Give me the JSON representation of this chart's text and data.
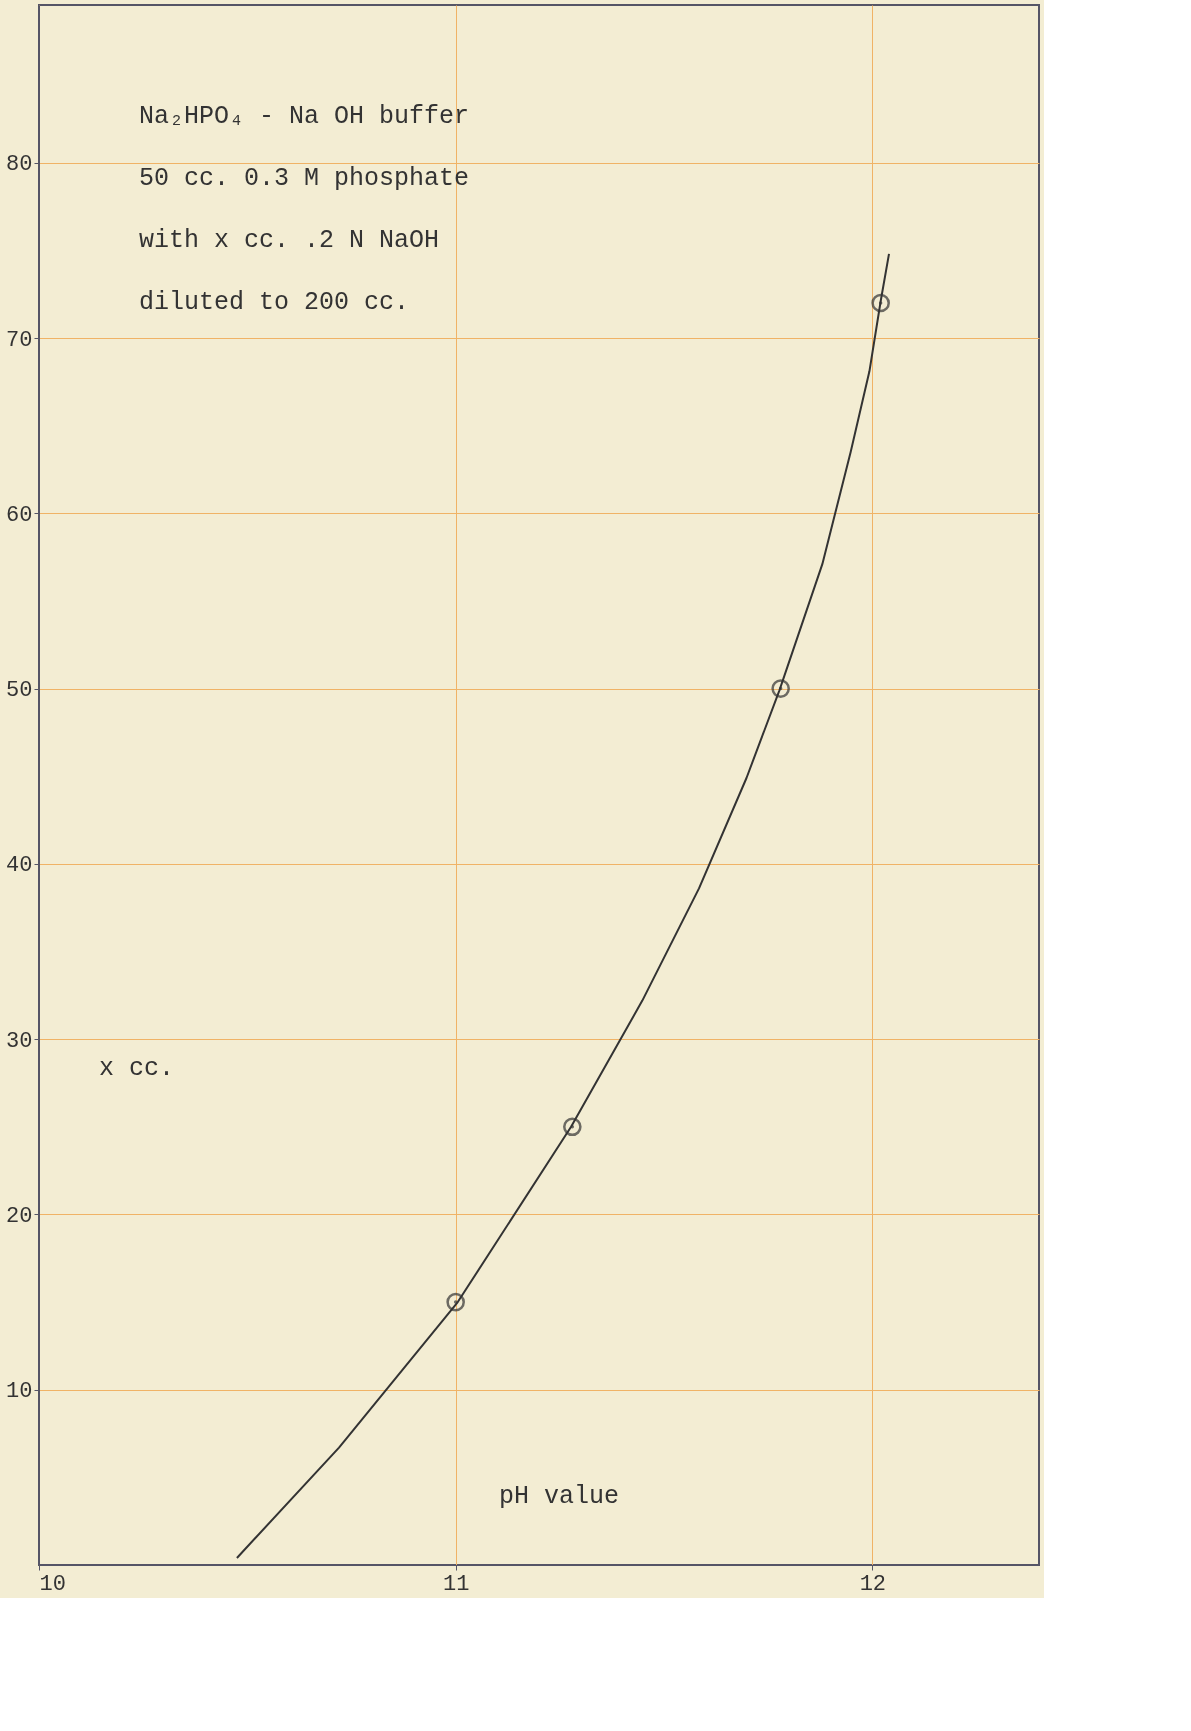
{
  "chart_data": {
    "type": "line",
    "xlabel": "pH value",
    "ylabel": "x  cc.",
    "annotations": [
      "Na₂HPO₄ - Na OH  buffer",
      "50 cc. 0.3 M phosphate",
      "with  x  cc. .2 N NaOH",
      "diluted to 200 cc."
    ],
    "xlim": [
      10,
      12.4
    ],
    "xticks": [
      10,
      11,
      12
    ],
    "ylim": [
      0,
      89
    ],
    "yticks": [
      10,
      20,
      30,
      40,
      50,
      60,
      70,
      80
    ],
    "grid": true,
    "line_style": "solid",
    "series": [
      {
        "marker": "none",
        "color": "#333333",
        "x": [
          10.475,
          10.72,
          11.005,
          11.277,
          11.448,
          11.584,
          11.698,
          11.777,
          11.88,
          11.948,
          11.993,
          12.02,
          12.04
        ],
        "values": [
          0.4,
          6.7,
          15.0,
          25.0,
          32.2,
          38.6,
          44.9,
          49.9,
          57.1,
          63.5,
          68.1,
          72.1,
          74.8
        ]
      },
      {
        "type": "scatter",
        "marker": "circle",
        "color": "#333333",
        "x": [
          11.0,
          11.28,
          11.78,
          12.02
        ],
        "values": [
          15,
          25,
          50,
          72
        ]
      }
    ]
  }
}
